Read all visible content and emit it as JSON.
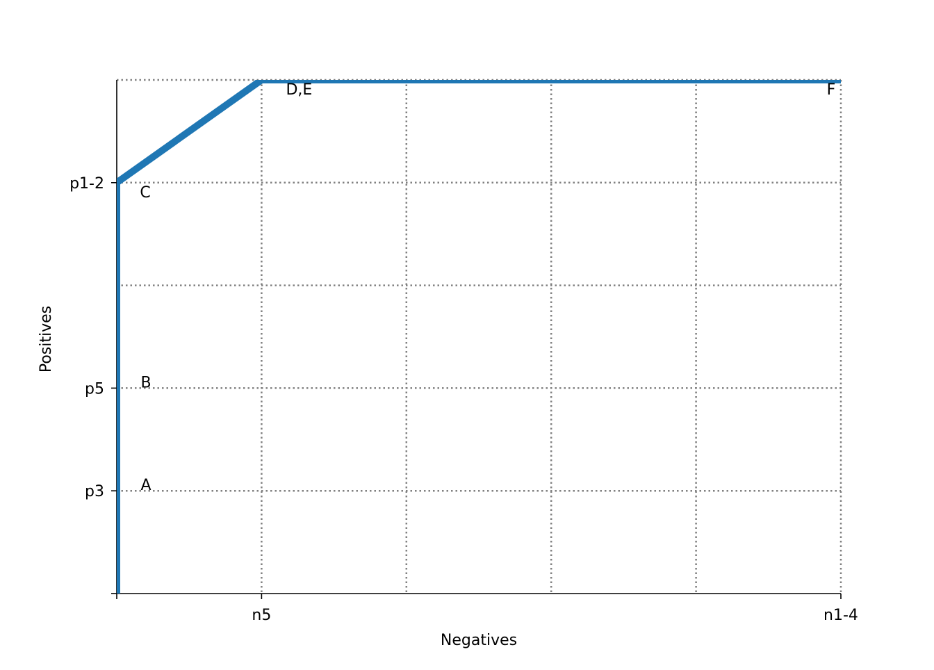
{
  "chart_data": {
    "type": "line",
    "xlabel": "Negatives",
    "ylabel": "Positives",
    "xlim": [
      0,
      5
    ],
    "ylim": [
      0,
      5
    ],
    "xticks": [
      {
        "value": 0,
        "label": null
      },
      {
        "value": 1,
        "label": "n5"
      },
      {
        "value": 5,
        "label": "n1-4"
      }
    ],
    "yticks": [
      {
        "value": 0,
        "label": null
      },
      {
        "value": 1,
        "label": "p3"
      },
      {
        "value": 2,
        "label": "p5"
      },
      {
        "value": 4,
        "label": "p1-2"
      }
    ],
    "xgrid": [
      1,
      2,
      3,
      4,
      5
    ],
    "ygrid": [
      1,
      2,
      3,
      4,
      5
    ],
    "grid": true,
    "series": [
      {
        "color": "#1f77b4",
        "x": [
          0,
          0,
          0,
          0,
          1,
          5
        ],
        "values": [
          0,
          1,
          2,
          4,
          5,
          5
        ],
        "point_labels": [
          null,
          "A",
          "B",
          "C",
          "D,E",
          "F"
        ]
      }
    ]
  }
}
